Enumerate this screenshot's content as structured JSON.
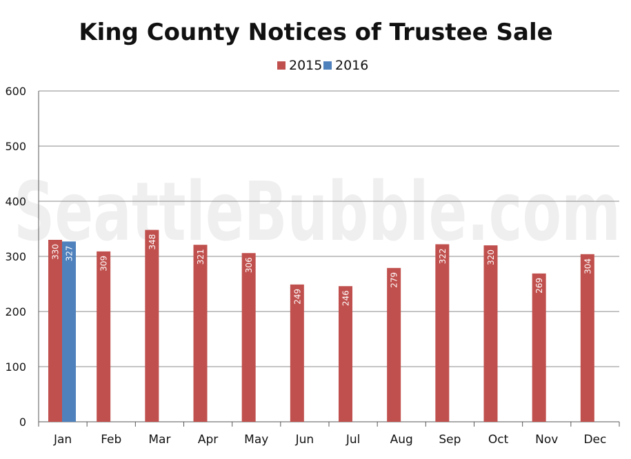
{
  "watermark": "SeattleBubble.com",
  "colors": {
    "2015": "#c0504d",
    "2016": "#4f81bd",
    "grid": "#888888",
    "axis": "#555555"
  },
  "chart_data": {
    "type": "bar",
    "title": "King County Notices of Trustee Sale",
    "xlabel": "",
    "ylabel": "",
    "ylim": [
      0,
      600
    ],
    "yticks": [
      0,
      100,
      200,
      300,
      400,
      500,
      600
    ],
    "grid": true,
    "legend": "top-center",
    "categories": [
      "Jan",
      "Feb",
      "Mar",
      "Apr",
      "May",
      "Jun",
      "Jul",
      "Aug",
      "Sep",
      "Oct",
      "Nov",
      "Dec"
    ],
    "series": [
      {
        "name": "2015",
        "values": [
          330,
          309,
          348,
          321,
          306,
          249,
          246,
          279,
          322,
          320,
          269,
          304
        ]
      },
      {
        "name": "2016",
        "values": [
          327,
          null,
          null,
          null,
          null,
          null,
          null,
          null,
          null,
          null,
          null,
          null
        ]
      }
    ]
  }
}
